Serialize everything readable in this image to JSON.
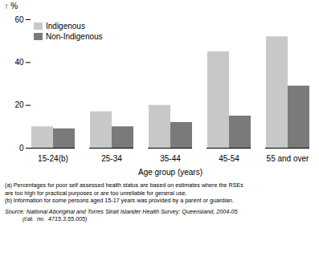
{
  "chart_data": {
    "type": "bar",
    "categories": [
      "15-24(b)",
      "25-34",
      "35-44",
      "45-54",
      "55 and over"
    ],
    "series": [
      {
        "name": "Indigenous",
        "color": "#c8c8c8",
        "values": [
          10,
          17,
          20,
          45,
          52
        ]
      },
      {
        "name": "Non-Indigenous",
        "color": "#7a7a7a",
        "values": [
          9,
          10,
          12,
          15,
          29
        ]
      }
    ],
    "xlabel": "Age group (years)",
    "ylabel": "%",
    "ylim": [
      0,
      60
    ],
    "yticks": [
      0,
      20,
      40,
      60
    ],
    "legend": "upper left",
    "annotations": [
      "(a) Percentages for poor self assessed health status are based on estimates where the RSEs",
      "are too high for practical purposes or are too unreliable for general use.",
      "(b) Information for some persons aged 15-17 years was provided by a parent or guardian."
    ],
    "source": [
      "Source: National Aboriginal and Torres Strait Islander Health Survey: Queensland, 2004-05",
      "           (cat.  no.  4715.3.55.005)"
    ]
  }
}
